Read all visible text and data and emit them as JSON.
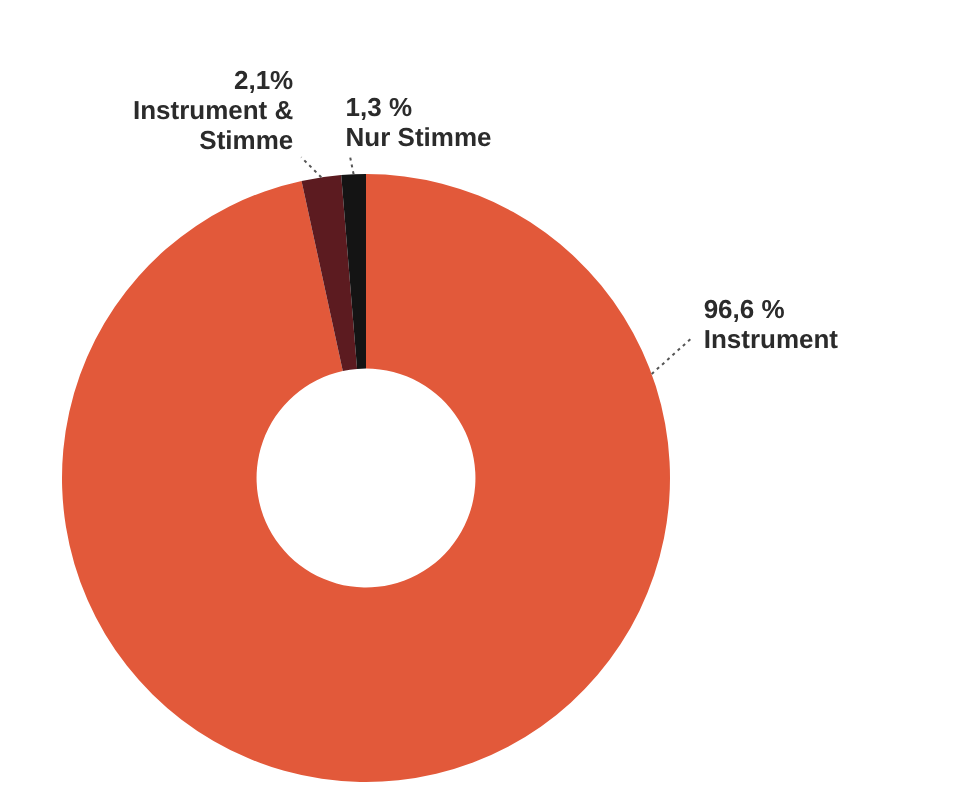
{
  "chart_data": {
    "type": "donut",
    "categories": [
      "Instrument",
      "Instrument & Stimme",
      "Nur Stimme"
    ],
    "values": [
      96.6,
      2.1,
      1.3
    ],
    "colors": [
      "#e2593a",
      "#5c1b20",
      "#141414"
    ],
    "value_labels": [
      "96,6 %",
      "2,1%",
      "1,3 %"
    ],
    "legend": false
  }
}
